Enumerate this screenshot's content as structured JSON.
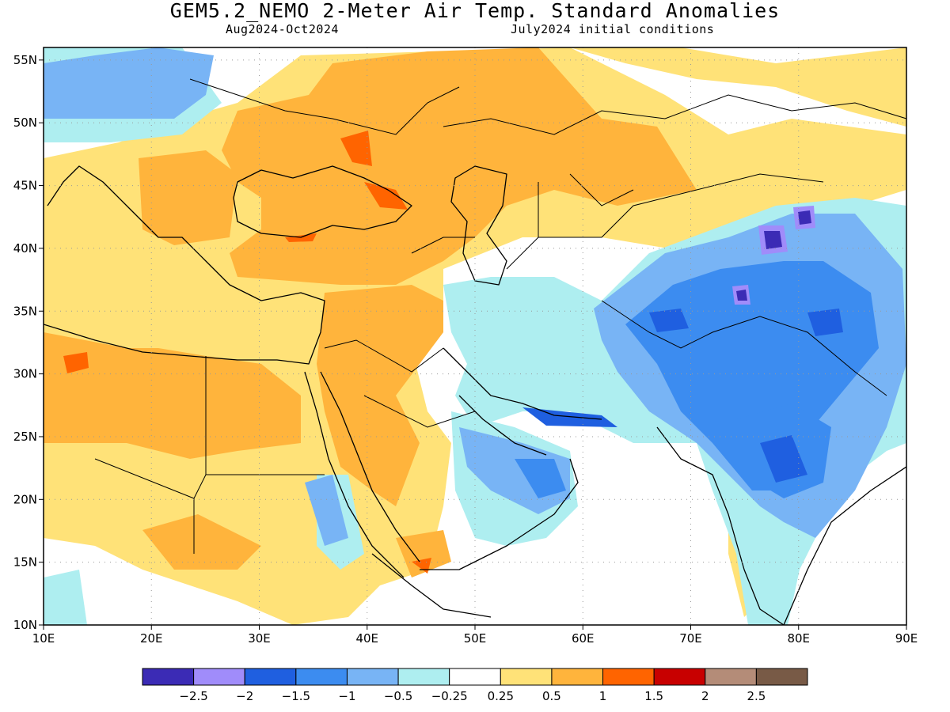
{
  "title": "GEM5.2_NEMO 2-Meter Air Temp. Standard Anomalies",
  "subtitle_left": "Aug2024-Oct2024",
  "subtitle_right": "July2024 initial conditions",
  "map": {
    "lon_range": [
      10,
      90
    ],
    "lat_range": [
      10,
      56
    ],
    "lat_ticks": [
      {
        "value": 10,
        "label": "10N"
      },
      {
        "value": 15,
        "label": "15N"
      },
      {
        "value": 20,
        "label": "20N"
      },
      {
        "value": 25,
        "label": "25N"
      },
      {
        "value": 30,
        "label": "30N"
      },
      {
        "value": 35,
        "label": "35N"
      },
      {
        "value": 40,
        "label": "40N"
      },
      {
        "value": 45,
        "label": "45N"
      },
      {
        "value": 50,
        "label": "50N"
      },
      {
        "value": 55,
        "label": "55N"
      }
    ],
    "lon_ticks": [
      {
        "value": 10,
        "label": "10E"
      },
      {
        "value": 20,
        "label": "20E"
      },
      {
        "value": 30,
        "label": "30E"
      },
      {
        "value": 40,
        "label": "40E"
      },
      {
        "value": 50,
        "label": "50E"
      },
      {
        "value": 60,
        "label": "60E"
      },
      {
        "value": 70,
        "label": "70E"
      },
      {
        "value": 80,
        "label": "80E"
      },
      {
        "value": 90,
        "label": "90E"
      }
    ],
    "gridlines": true,
    "colors": [
      "#3b2bb5",
      "#a08cfa",
      "#1f5fe0",
      "#3c8cf0",
      "#78b4f5",
      "#aeeef0",
      "#ffffff",
      "#ffe278",
      "#ffb43c",
      "#ff6400",
      "#c80000",
      "#b48c78",
      "#785a46"
    ]
  },
  "colorbar": {
    "labels": [
      "−2.5",
      "−2",
      "−1.5",
      "−1",
      "−0.5",
      "−0.25",
      "0.25",
      "0.5",
      "1",
      "1.5",
      "2",
      "2.5"
    ]
  }
}
